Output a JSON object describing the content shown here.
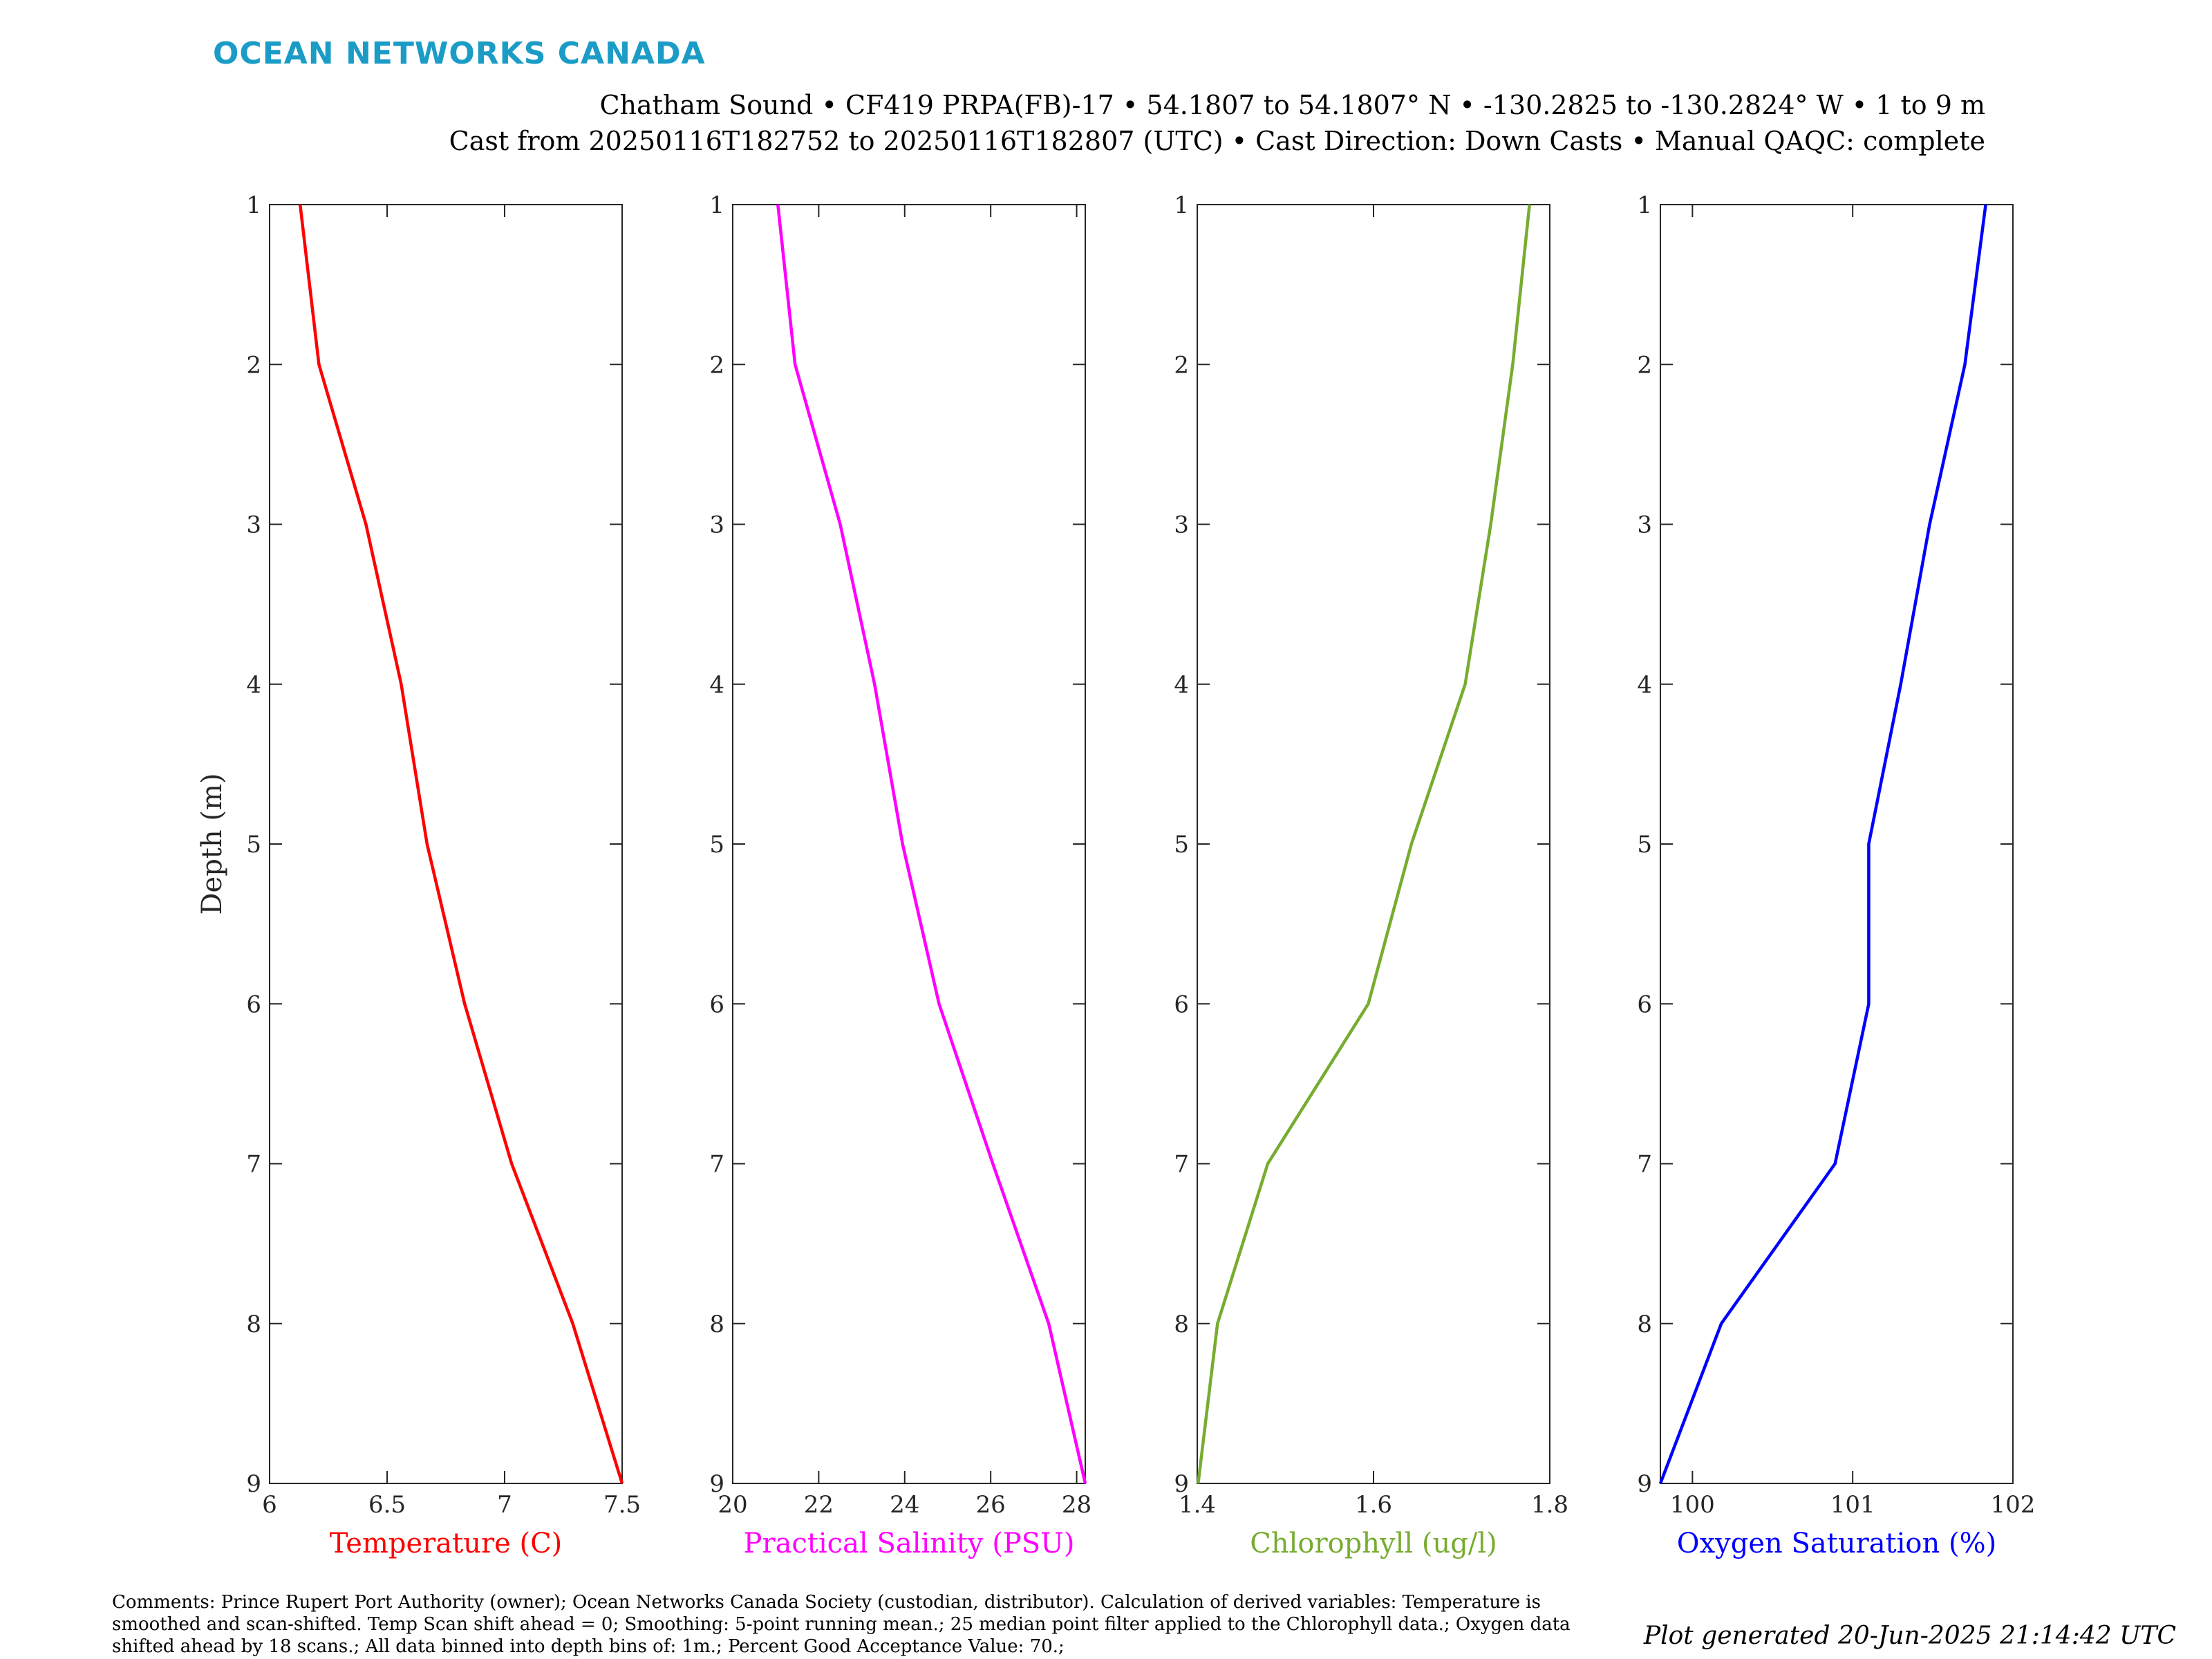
{
  "header": {
    "logo_text": "OCEAN NETWORKS CANADA",
    "logo_color": "#1a9cc6",
    "title_line1": "Chatham Sound • CF419 PRPA(FB)-17 • 54.1807 to 54.1807° N • -130.2825 to -130.2824° W • 1 to 9 m",
    "title_line2": "Cast from 20250116T182752 to 20250116T182807 (UTC) • Cast Direction: Down Casts • Manual QAQC: complete"
  },
  "footer": {
    "comments": "Comments: Prince Rupert Port Authority (owner); Ocean Networks Canada Society (custodian, distributor). Calculation of derived variables: Temperature is smoothed and scan-shifted. Temp Scan shift ahead = 0; Smoothing: 5-point running mean.; 25 median point filter applied to the Chlorophyll data.; Oxygen data shifted ahead by 18 scans.; All data binned into depth bins of: 1m.; Percent Good Acceptance Value: 70.;",
    "generated": "Plot generated 20-Jun-2025 21:14:42 UTC"
  },
  "chart_data": [
    {
      "type": "line",
      "xlabel": "Temperature (C)",
      "ylabel": "Depth (m)",
      "color": "#ff0000",
      "xlim": [
        6,
        7.5
      ],
      "ylim": [
        1,
        9
      ],
      "y_reversed": true,
      "xticks": [
        6,
        6.5,
        7,
        7.5
      ],
      "xtick_labels": [
        "6",
        "6.5",
        "7",
        "7.5"
      ],
      "yticks": [
        1,
        2,
        3,
        4,
        5,
        6,
        7,
        8,
        9
      ],
      "x": [
        6.13,
        6.21,
        6.41,
        6.56,
        6.67,
        6.83,
        7.03,
        7.29,
        7.5
      ],
      "y": [
        1,
        2,
        3,
        4,
        5,
        6,
        7,
        8,
        9
      ]
    },
    {
      "type": "line",
      "xlabel": "Practical Salinity (PSU)",
      "ylabel": "",
      "color": "#ff00ff",
      "xlim": [
        20,
        28.2
      ],
      "ylim": [
        1,
        9
      ],
      "y_reversed": true,
      "xticks": [
        20,
        22,
        24,
        26,
        28
      ],
      "xtick_labels": [
        "20",
        "22",
        "24",
        "26",
        "28"
      ],
      "yticks": [
        1,
        2,
        3,
        4,
        5,
        6,
        7,
        8,
        9
      ],
      "x": [
        21.05,
        21.45,
        22.5,
        23.3,
        23.95,
        24.8,
        26.05,
        27.35,
        28.2
      ],
      "y": [
        1,
        2,
        3,
        4,
        5,
        6,
        7,
        8,
        9
      ]
    },
    {
      "type": "line",
      "xlabel": "Chlorophyll (ug/l)",
      "ylabel": "",
      "color": "#77ac30",
      "xlim": [
        1.4,
        1.8
      ],
      "ylim": [
        1,
        9
      ],
      "y_reversed": true,
      "xticks": [
        1.4,
        1.6,
        1.8
      ],
      "xtick_labels": [
        "1.4",
        "1.6",
        "1.8"
      ],
      "yticks": [
        1,
        2,
        3,
        4,
        5,
        6,
        7,
        8,
        9
      ],
      "x": [
        1.777,
        1.758,
        1.733,
        1.704,
        1.643,
        1.594,
        1.48,
        1.423,
        1.401
      ],
      "y": [
        1,
        2,
        3,
        4,
        5,
        6,
        7,
        8,
        9
      ]
    },
    {
      "type": "line",
      "xlabel": "Oxygen Saturation (%)",
      "ylabel": "",
      "color": "#0000ff",
      "xlim": [
        99.8,
        102
      ],
      "ylim": [
        1,
        9
      ],
      "y_reversed": true,
      "xticks": [
        100,
        101,
        102
      ],
      "xtick_labels": [
        "100",
        "101",
        "102"
      ],
      "yticks": [
        1,
        2,
        3,
        4,
        5,
        6,
        7,
        8,
        9
      ],
      "x": [
        101.83,
        101.7,
        101.48,
        101.3,
        101.1,
        101.1,
        100.89,
        100.18,
        99.8
      ],
      "y": [
        1,
        2,
        3,
        4,
        5,
        6,
        7,
        8,
        9
      ]
    }
  ]
}
